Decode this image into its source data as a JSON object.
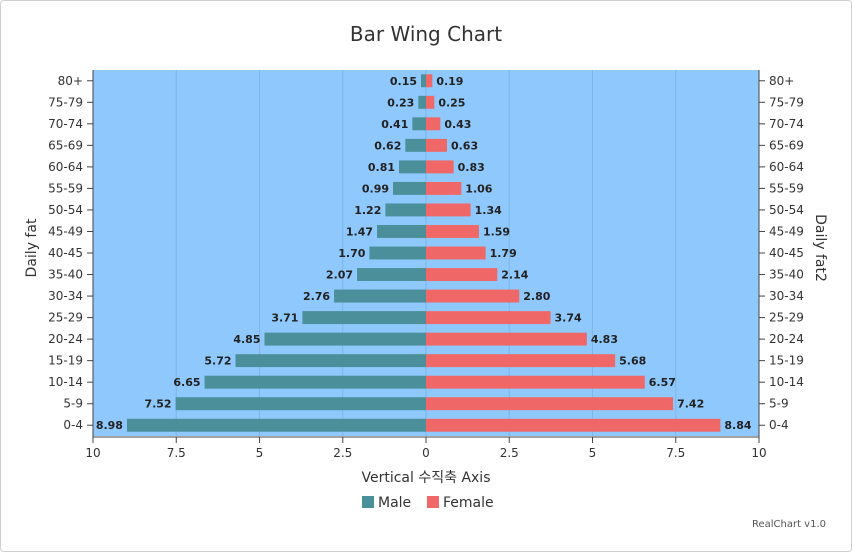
{
  "chart_data": {
    "type": "bar",
    "orientation": "horizontal-butterfly",
    "title": "Bar Wing Chart",
    "xlabel": "Vertical 수직축 Axis",
    "ylabel_left": "Daily fat",
    "ylabel_right": "Daily fat2",
    "xlim": [
      10,
      0,
      10
    ],
    "x_ticks": [
      "10",
      "7.5",
      "5",
      "2.5",
      "0",
      "2.5",
      "5",
      "7.5",
      "10"
    ],
    "categories": [
      "80+",
      "75-79",
      "70-74",
      "65-69",
      "60-64",
      "55-59",
      "50-54",
      "45-49",
      "40-45",
      "35-40",
      "30-34",
      "25-29",
      "20-24",
      "15-19",
      "10-14",
      "5-9",
      "0-4"
    ],
    "series": [
      {
        "name": "Male",
        "color": "#4a8f9a",
        "values": [
          0.15,
          0.23,
          0.41,
          0.62,
          0.81,
          0.99,
          1.22,
          1.47,
          1.7,
          2.07,
          2.76,
          3.71,
          4.85,
          5.72,
          6.65,
          7.52,
          8.98
        ]
      },
      {
        "name": "Female",
        "color": "#f06767",
        "values": [
          0.19,
          0.25,
          0.43,
          0.63,
          0.83,
          1.06,
          1.34,
          1.59,
          1.79,
          2.14,
          2.8,
          3.74,
          4.83,
          5.68,
          6.57,
          7.42,
          8.84
        ]
      }
    ],
    "plot_background": "#8ec8fd",
    "grid": true,
    "legend": "bottom-center"
  },
  "credit": "RealChart v1.0"
}
